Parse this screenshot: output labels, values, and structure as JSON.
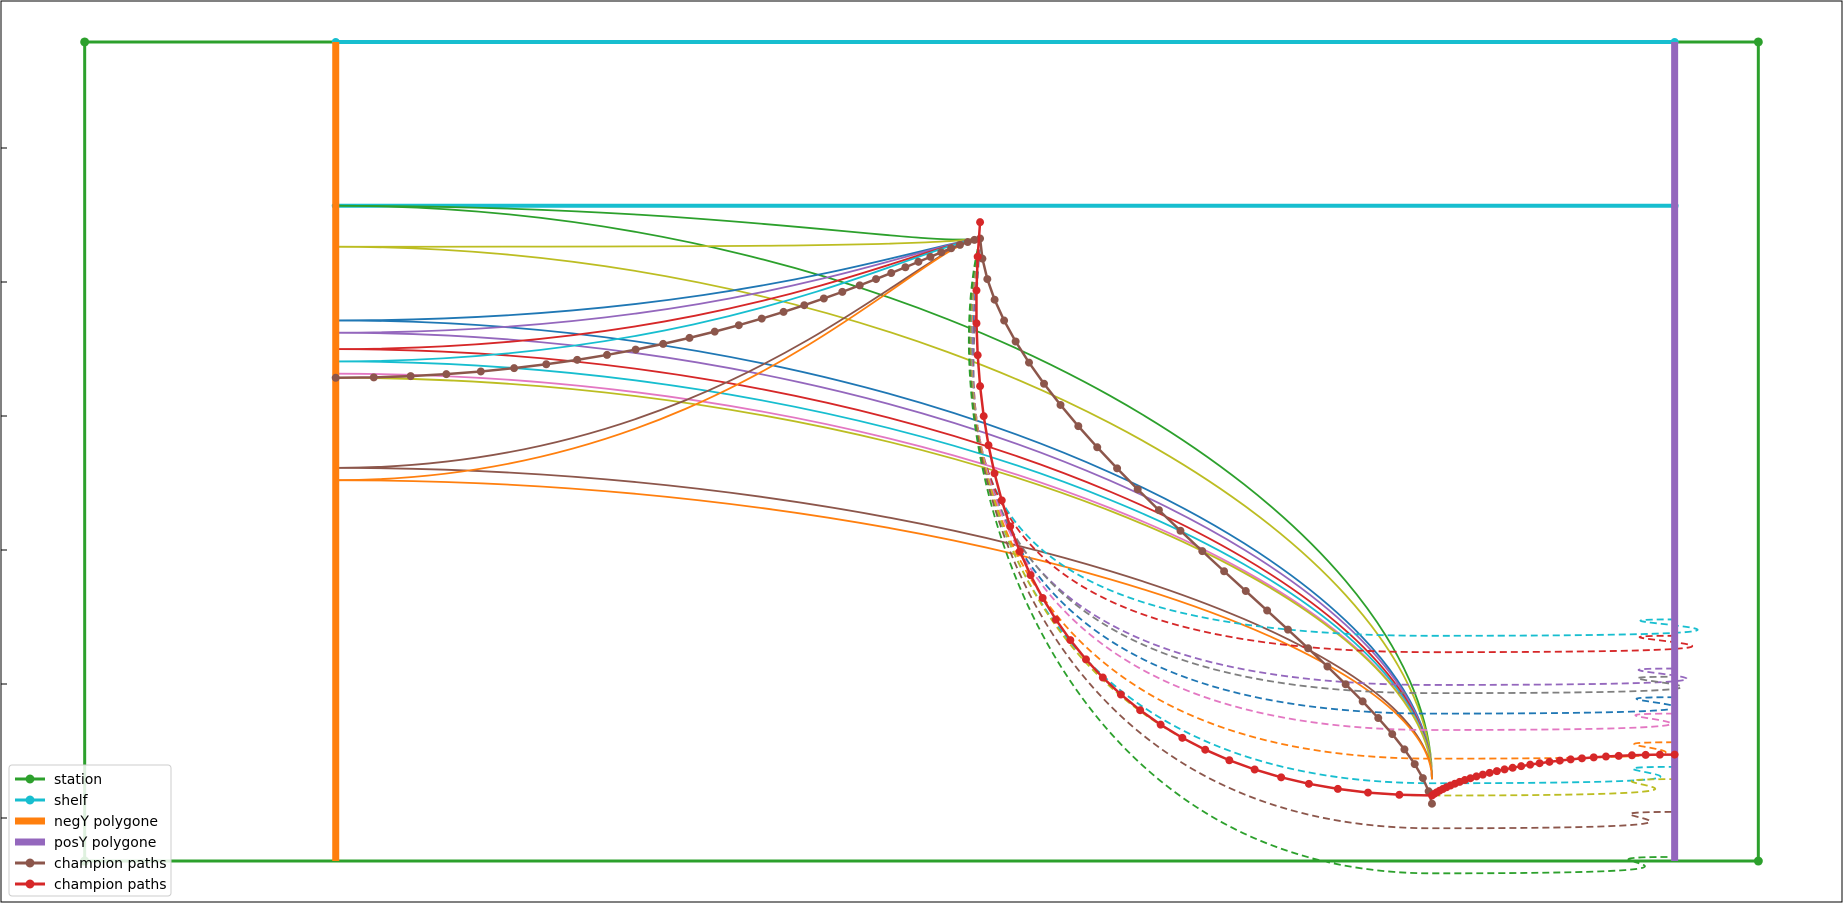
{
  "chart_data": {
    "type": "line",
    "title": "",
    "xlabel": "",
    "ylabel": "",
    "xlim": [
      -1.0,
      21.0
    ],
    "ylim": [
      -0.5,
      10.5
    ],
    "grid": false,
    "legend_position": "lower-left",
    "legend": [
      {
        "label": "station",
        "color": "#2ca02c",
        "marker": "dot"
      },
      {
        "label": "shelf",
        "color": "#17becf",
        "marker": "dot"
      },
      {
        "label": "negY polygone",
        "color": "#ff7f0e",
        "marker": "none"
      },
      {
        "label": "posY polygone",
        "color": "#9467bd",
        "marker": "none"
      },
      {
        "label": "champion paths",
        "color": "#8c564b",
        "marker": "dot"
      },
      {
        "label": "champion paths",
        "color": "#d62728",
        "marker": "dot"
      }
    ],
    "station": {
      "color": "#2ca02c",
      "x": [
        0,
        20,
        20,
        0,
        0
      ],
      "y": [
        0,
        0,
        10,
        10,
        0
      ]
    },
    "shelves": {
      "color": "#17becf",
      "lines": [
        {
          "x": [
            3,
            19
          ],
          "y": [
            10,
            10
          ]
        },
        {
          "x": [
            3,
            19
          ],
          "y": [
            8,
            8
          ]
        }
      ]
    },
    "negY_polygone": {
      "color": "#ff7f0e",
      "x": [
        3,
        3
      ],
      "y": [
        0,
        10
      ]
    },
    "posY_polygone": {
      "color": "#9467bd",
      "x": [
        19,
        19
      ],
      "y": [
        0,
        10
      ]
    },
    "waypoints": {
      "upper": {
        "x": 10.7,
        "y": 7.6
      },
      "lower": {
        "x": 16.1,
        "y": 0.7
      }
    },
    "group1_paths": [
      {
        "color": "#2ca02c",
        "start": [
          3,
          8.0
        ],
        "end": [
          16.1,
          1.0
        ],
        "via": 0
      },
      {
        "color": "#bcbd22",
        "start": [
          3,
          7.5
        ],
        "end": [
          16.1,
          1.0
        ],
        "via": 0
      },
      {
        "color": "#1f77b4",
        "start": [
          3,
          6.6
        ],
        "end": [
          16.1,
          1.0
        ],
        "via": 0
      },
      {
        "color": "#9467bd",
        "start": [
          3,
          6.45
        ],
        "end": [
          16.1,
          1.0
        ],
        "via": 0
      },
      {
        "color": "#d62728",
        "start": [
          3,
          6.25
        ],
        "end": [
          16.1,
          1.0
        ],
        "via": 0
      },
      {
        "color": "#17becf",
        "start": [
          3,
          6.1
        ],
        "end": [
          16.1,
          1.0
        ],
        "via": 0
      },
      {
        "color": "#e377c2",
        "start": [
          3,
          5.95
        ],
        "end": [
          16.1,
          1.0
        ],
        "via": 0
      },
      {
        "color": "#bcbd22",
        "start": [
          3,
          5.9
        ],
        "end": [
          16.1,
          1.0
        ],
        "via": 0
      },
      {
        "color": "#8c564b",
        "start": [
          3,
          4.8
        ],
        "end": [
          16.1,
          1.0
        ],
        "via": 0
      },
      {
        "color": "#ff7f0e",
        "start": [
          3,
          4.65
        ],
        "end": [
          16.1,
          1.0
        ],
        "via": 0
      },
      {
        "color": "#2ca02c",
        "start": [
          3,
          8.0
        ],
        "end": [
          10.7,
          7.6
        ],
        "via": 1
      },
      {
        "color": "#bcbd22",
        "start": [
          3,
          7.5
        ],
        "end": [
          10.7,
          7.6
        ],
        "via": 1
      },
      {
        "color": "#1f77b4",
        "start": [
          3,
          6.6
        ],
        "end": [
          10.7,
          7.6
        ],
        "via": 1
      },
      {
        "color": "#9467bd",
        "start": [
          3,
          6.45
        ],
        "end": [
          10.7,
          7.6
        ],
        "via": 1
      },
      {
        "color": "#d62728",
        "start": [
          3,
          6.25
        ],
        "end": [
          10.7,
          7.6
        ],
        "via": 1
      },
      {
        "color": "#17becf",
        "start": [
          3,
          6.1
        ],
        "end": [
          10.7,
          7.6
        ],
        "via": 1
      },
      {
        "color": "#8c564b",
        "start": [
          3,
          4.8
        ],
        "end": [
          10.7,
          7.6
        ],
        "via": 1
      },
      {
        "color": "#ff7f0e",
        "start": [
          3,
          4.65
        ],
        "end": [
          10.7,
          7.6
        ],
        "via": 1
      }
    ],
    "group2_paths": [
      {
        "color": "#17becf",
        "end": [
          19,
          2.95
        ],
        "dashed": true
      },
      {
        "color": "#d62728",
        "end": [
          19,
          2.75
        ],
        "dashed": true
      },
      {
        "color": "#9467bd",
        "end": [
          19,
          2.35
        ],
        "dashed": true
      },
      {
        "color": "#7f7f7f",
        "end": [
          19,
          2.25
        ],
        "dashed": true
      },
      {
        "color": "#1f77b4",
        "end": [
          19,
          2.0
        ],
        "dashed": true
      },
      {
        "color": "#e377c2",
        "end": [
          19,
          1.8
        ],
        "dashed": true
      },
      {
        "color": "#ff7f0e",
        "end": [
          19,
          1.45
        ],
        "dashed": true
      },
      {
        "color": "#17becf",
        "end": [
          19,
          1.15
        ],
        "dashed": true
      },
      {
        "color": "#bcbd22",
        "end": [
          19,
          1.0
        ],
        "dashed": true
      },
      {
        "color": "#8c564b",
        "end": [
          19,
          0.6
        ],
        "dashed": true
      },
      {
        "color": "#2ca02c",
        "end": [
          19,
          0.05
        ],
        "dashed": true
      }
    ],
    "champion_paths": [
      {
        "color": "#8c564b",
        "markers": true,
        "points": [
          [
            3,
            5.9
          ],
          [
            10.7,
            7.6
          ],
          [
            16.1,
            0.7
          ]
        ]
      },
      {
        "color": "#d62728",
        "markers": true,
        "points": [
          [
            10.7,
            7.8
          ],
          [
            16.1,
            0.8
          ],
          [
            19,
            1.3
          ]
        ]
      }
    ]
  }
}
